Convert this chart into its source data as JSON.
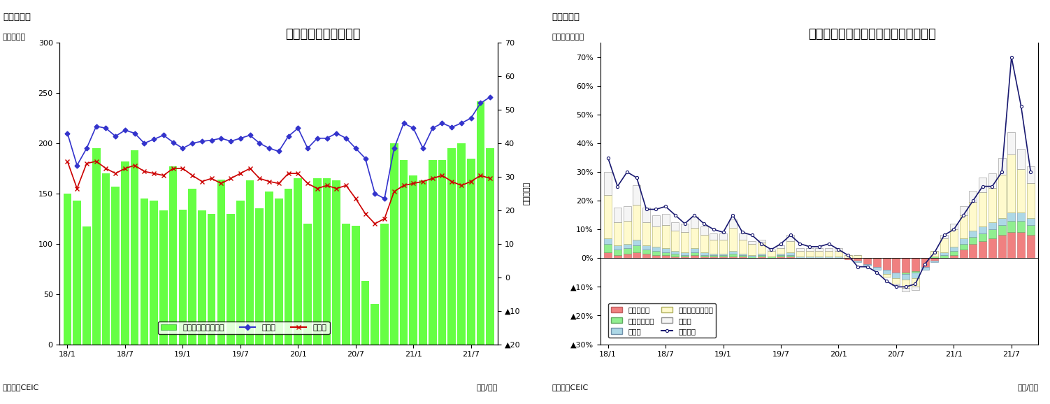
{
  "chart1": {
    "title": "マレーシア　貿易収支",
    "subtitle": "（図表７）",
    "ylabel_left": "（億ドル）",
    "ylabel_right": "（億ドル）",
    "xlabel": "（年/月）",
    "source": "（資料）CEIC",
    "legend_tb": "貿易収支（右目盛）",
    "legend_exp": "輸出額",
    "legend_imp": "輸入額",
    "x_labels": [
      "18/1",
      "18/7",
      "19/1",
      "19/7",
      "20/1",
      "20/7",
      "21/1",
      "21/7"
    ],
    "exports": [
      210,
      178,
      195,
      217,
      215,
      207,
      213,
      210,
      200,
      204,
      208,
      201,
      195,
      200,
      202,
      203,
      205,
      202,
      205,
      208,
      200,
      195,
      192,
      207,
      215,
      195,
      205,
      205,
      210,
      205,
      195,
      185,
      150,
      145,
      195,
      220,
      215,
      195,
      215,
      220,
      216,
      220,
      225,
      240,
      246
    ],
    "imports": [
      182,
      155,
      180,
      182,
      175,
      170,
      175,
      178,
      172,
      170,
      168,
      175,
      175,
      168,
      162,
      165,
      160,
      165,
      170,
      175,
      165,
      162,
      160,
      170,
      170,
      160,
      155,
      158,
      155,
      158,
      145,
      130,
      120,
      125,
      152,
      158,
      160,
      162,
      165,
      168,
      162,
      158,
      162,
      168,
      165
    ],
    "trade_balance_bars": [
      150,
      143,
      117,
      195,
      170,
      157,
      182,
      193,
      145,
      143,
      133,
      177,
      134,
      155,
      133,
      130,
      164,
      130,
      143,
      163,
      135,
      152,
      145,
      155,
      165,
      120,
      165,
      165,
      163,
      120,
      118,
      63,
      40,
      120,
      200,
      183,
      168,
      163,
      183,
      183,
      195,
      200,
      185,
      242,
      195
    ],
    "ylim_left": [
      0,
      300
    ],
    "ylim_right": [
      -20,
      70
    ],
    "yticks_left": [
      0,
      50,
      100,
      150,
      200,
      250,
      300
    ],
    "yticks_right": [
      -20,
      -10,
      0,
      10,
      20,
      30,
      40,
      50,
      60,
      70
    ],
    "bar_color": "#66ff44",
    "export_color": "#3333cc",
    "import_color": "#cc0000"
  },
  "chart2": {
    "title": "マレーシア　輸出の伸び率（品目別）",
    "subtitle": "（図表８）",
    "ylabel_left": "（前年同月比）",
    "xlabel": "（年/月）",
    "source": "（資料）CEIC",
    "legend_mineral": "鉱物性燃料",
    "legend_vegoil": "動植物性油脂",
    "legend_mfg": "製造品",
    "legend_mach": "機械・輸送用機器",
    "legend_others": "その他",
    "legend_total": "輸出合計",
    "x_labels": [
      "18/1",
      "18/7",
      "19/1",
      "19/7",
      "20/1",
      "20/7",
      "21/1",
      "21/7"
    ],
    "mineral_fuels": [
      2.0,
      1.0,
      1.5,
      2.0,
      1.5,
      1.0,
      1.0,
      0.5,
      0.5,
      1.0,
      0.5,
      0.5,
      0.5,
      0.5,
      0.5,
      0.0,
      0.5,
      0.0,
      0.5,
      0.5,
      0.0,
      0.0,
      0.0,
      0.0,
      0.0,
      -0.5,
      -1.0,
      -2.0,
      -3.0,
      -4.0,
      -5.0,
      -5.0,
      -4.5,
      -3.0,
      -1.0,
      0.0,
      1.0,
      3.0,
      5.0,
      6.0,
      7.0,
      8.0,
      9.0,
      9.0,
      8.0
    ],
    "veg_oils": [
      3.0,
      2.0,
      2.0,
      2.5,
      1.5,
      1.5,
      1.0,
      1.0,
      0.5,
      1.0,
      0.5,
      0.5,
      0.5,
      1.0,
      0.5,
      0.5,
      0.5,
      0.5,
      0.5,
      0.5,
      0.0,
      0.0,
      0.0,
      0.0,
      0.0,
      0.0,
      0.0,
      0.0,
      0.0,
      0.0,
      0.0,
      -0.5,
      -0.5,
      0.0,
      0.5,
      1.0,
      1.5,
      2.0,
      2.5,
      2.5,
      3.0,
      3.5,
      4.0,
      4.0,
      3.5
    ],
    "manufactured": [
      2.0,
      1.5,
      1.5,
      2.0,
      1.5,
      1.5,
      1.5,
      1.0,
      1.0,
      1.5,
      1.0,
      0.5,
      0.5,
      1.0,
      0.5,
      0.5,
      0.5,
      0.0,
      0.5,
      1.0,
      0.5,
      0.5,
      0.5,
      0.5,
      0.5,
      0.0,
      -0.5,
      -0.5,
      -1.0,
      -1.5,
      -2.0,
      -2.0,
      -2.0,
      -1.0,
      -0.5,
      1.0,
      1.5,
      2.0,
      2.0,
      2.5,
      2.5,
      2.5,
      3.0,
      3.0,
      2.5
    ],
    "machinery": [
      15.0,
      8.0,
      8.0,
      12.0,
      8.0,
      7.0,
      8.0,
      7.0,
      7.0,
      7.0,
      6.0,
      5.0,
      5.0,
      8.0,
      5.0,
      4.0,
      4.0,
      2.0,
      2.0,
      4.0,
      2.0,
      2.0,
      2.0,
      2.0,
      2.0,
      1.0,
      1.0,
      0.0,
      0.0,
      -1.0,
      -2.0,
      -3.0,
      -3.0,
      0.0,
      2.0,
      5.0,
      6.0,
      8.0,
      10.0,
      12.0,
      12.0,
      15.0,
      20.0,
      15.0,
      12.0
    ],
    "others": [
      8.0,
      5.0,
      5.0,
      7.0,
      5.0,
      4.0,
      4.0,
      3.0,
      3.0,
      4.0,
      3.0,
      2.0,
      2.0,
      3.0,
      2.0,
      1.0,
      1.0,
      0.5,
      1.0,
      2.0,
      1.0,
      1.0,
      1.0,
      1.0,
      1.0,
      0.0,
      0.0,
      0.0,
      0.0,
      0.0,
      -0.5,
      -1.0,
      -1.0,
      0.0,
      0.0,
      1.0,
      2.0,
      3.0,
      4.0,
      5.0,
      5.0,
      6.0,
      8.0,
      7.0,
      6.0
    ],
    "total_line": [
      35.0,
      25.0,
      30.0,
      28.0,
      17.0,
      17.0,
      18.0,
      15.0,
      12.0,
      15.0,
      12.0,
      10.0,
      9.0,
      15.0,
      9.0,
      8.0,
      5.0,
      3.0,
      5.0,
      8.0,
      5.0,
      4.0,
      4.0,
      5.0,
      3.0,
      1.0,
      -3.0,
      -3.0,
      -5.0,
      -8.0,
      -10.0,
      -10.0,
      -9.0,
      -2.0,
      2.0,
      8.0,
      10.0,
      15.0,
      20.0,
      25.0,
      25.0,
      30.0,
      70.0,
      53.0,
      30.0
    ],
    "ylim": [
      -0.3,
      0.75
    ],
    "yticks": [
      -0.3,
      -0.2,
      -0.1,
      0.0,
      0.1,
      0.2,
      0.3,
      0.4,
      0.5,
      0.6,
      0.7
    ],
    "color_mineral": "#f08080",
    "color_vegoil": "#90ee90",
    "color_manufactured": "#add8e6",
    "color_machinery": "#fffacd",
    "color_others": "#f5f5f5",
    "color_total": "#191970"
  }
}
